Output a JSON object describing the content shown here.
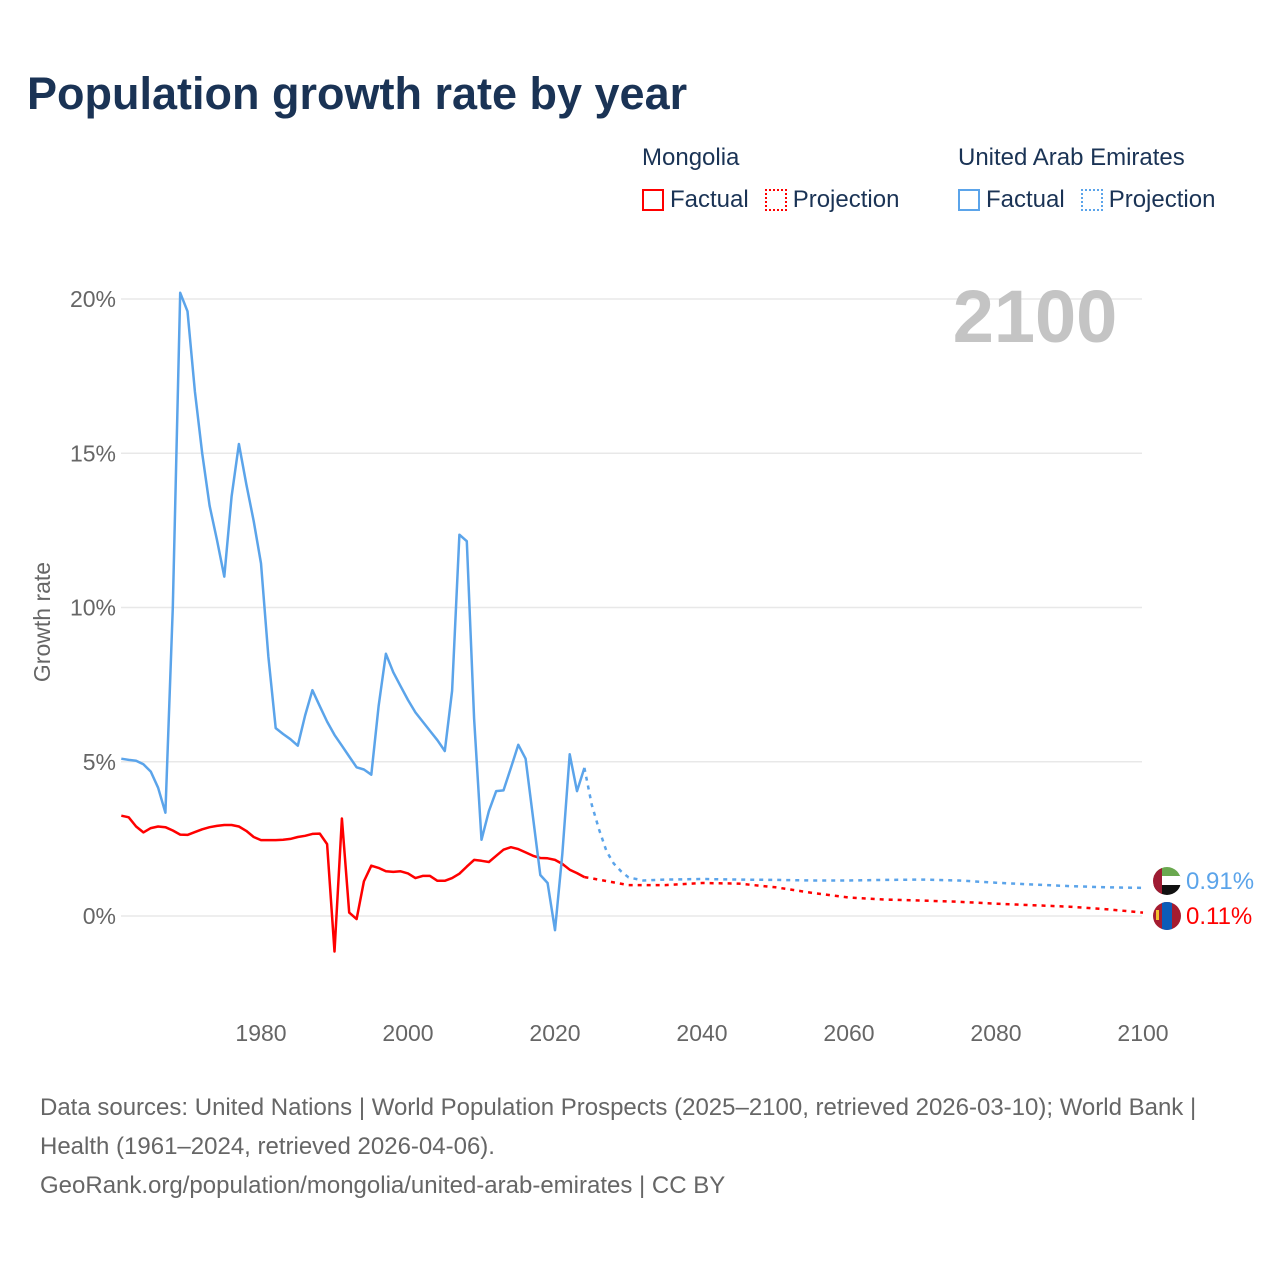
{
  "title": "Population growth rate by year",
  "legend": {
    "groups": [
      {
        "name": "Mongolia",
        "factual": "Factual",
        "projection": "Projection",
        "color": "#ff0000"
      },
      {
        "name": "United Arab Emirates",
        "factual": "Factual",
        "projection": "Projection",
        "color": "#5ba4ea"
      }
    ]
  },
  "year_display": "2100",
  "footer": {
    "sources": "Data sources: United Nations | World Population Prospects (2025–2100, retrieved 2026-03-10); World Bank | Health (1961–2024, retrieved 2026-04-06).",
    "credit": "GeoRank.org/population/mongolia/united-arab-emirates | CC BY"
  },
  "chart_data": {
    "type": "line",
    "title": "Population growth rate by year",
    "xlabel": "",
    "ylabel": "Growth rate",
    "xlim": [
      1961,
      2100
    ],
    "ylim": [
      -1.5,
      20.5
    ],
    "x_ticks": [
      "1980",
      "2000",
      "2020",
      "2040",
      "2060",
      "2080",
      "2100"
    ],
    "x_tick_values": [
      1980,
      2000,
      2020,
      2040,
      2060,
      2080,
      2100
    ],
    "y_ticks": [
      "0%",
      "5%",
      "10%",
      "15%",
      "20%"
    ],
    "y_tick_values": [
      0,
      5,
      10,
      15,
      20
    ],
    "grid": true,
    "legend_position": "top-right",
    "series": [
      {
        "name": "Mongolia",
        "color": "#ff0000",
        "end_label": "0.11%",
        "factual": {
          "x": [
            1961,
            1962,
            1963,
            1964,
            1965,
            1966,
            1967,
            1968,
            1969,
            1970,
            1971,
            1972,
            1973,
            1974,
            1975,
            1976,
            1977,
            1978,
            1979,
            1980,
            1981,
            1982,
            1983,
            1984,
            1985,
            1986,
            1987,
            1988,
            1989,
            1990,
            1991,
            1992,
            1993,
            1994,
            1995,
            1996,
            1997,
            1998,
            1999,
            2000,
            2001,
            2002,
            2003,
            2004,
            2005,
            2006,
            2007,
            2008,
            2009,
            2010,
            2011,
            2012,
            2013,
            2014,
            2015,
            2016,
            2017,
            2018,
            2019,
            2020,
            2021,
            2022,
            2023,
            2024
          ],
          "y": [
            3.25,
            3.2,
            2.9,
            2.71,
            2.85,
            2.9,
            2.88,
            2.77,
            2.64,
            2.63,
            2.72,
            2.81,
            2.88,
            2.92,
            2.95,
            2.95,
            2.9,
            2.76,
            2.56,
            2.46,
            2.46,
            2.46,
            2.47,
            2.5,
            2.56,
            2.6,
            2.66,
            2.67,
            2.33,
            -1.15,
            3.16,
            0.11,
            -0.1,
            1.12,
            1.63,
            1.56,
            1.45,
            1.43,
            1.45,
            1.38,
            1.23,
            1.3,
            1.3,
            1.14,
            1.14,
            1.23,
            1.37,
            1.6,
            1.82,
            1.79,
            1.75,
            1.95,
            2.15,
            2.23,
            2.17,
            2.06,
            1.95,
            1.88,
            1.87,
            1.82,
            1.69,
            1.5,
            1.39,
            1.26
          ]
        },
        "projection": {
          "x": [
            2024,
            2025,
            2030,
            2035,
            2040,
            2045,
            2050,
            2055,
            2060,
            2065,
            2070,
            2075,
            2080,
            2085,
            2090,
            2095,
            2100
          ],
          "y": [
            1.26,
            1.22,
            1.0,
            1.0,
            1.07,
            1.05,
            0.93,
            0.75,
            0.6,
            0.53,
            0.5,
            0.46,
            0.4,
            0.35,
            0.3,
            0.22,
            0.11
          ]
        }
      },
      {
        "name": "United Arab Emirates",
        "color": "#5ba4ea",
        "end_label": "0.91%",
        "factual": {
          "x": [
            1961,
            1962,
            1963,
            1964,
            1965,
            1966,
            1967,
            1968,
            1969,
            1970,
            1971,
            1972,
            1973,
            1974,
            1975,
            1976,
            1977,
            1978,
            1979,
            1980,
            1981,
            1982,
            1983,
            1984,
            1985,
            1986,
            1987,
            1988,
            1989,
            1990,
            1991,
            1992,
            1993,
            1994,
            1995,
            1996,
            1997,
            1998,
            1999,
            2000,
            2001,
            2002,
            2003,
            2004,
            2005,
            2006,
            2007,
            2008,
            2009,
            2010,
            2011,
            2012,
            2013,
            2014,
            2015,
            2016,
            2017,
            2018,
            2019,
            2020,
            2021,
            2022,
            2023,
            2024
          ],
          "y": [
            5.1,
            5.06,
            5.03,
            4.92,
            4.68,
            4.16,
            3.35,
            10.0,
            20.2,
            19.6,
            17.0,
            15.0,
            13.3,
            12.2,
            11.0,
            13.6,
            15.3,
            14.0,
            12.8,
            11.43,
            8.4,
            6.09,
            5.9,
            5.73,
            5.52,
            6.5,
            7.32,
            6.8,
            6.3,
            5.87,
            5.52,
            5.17,
            4.82,
            4.75,
            4.58,
            6.8,
            8.5,
            7.9,
            7.45,
            7.0,
            6.6,
            6.3,
            6.0,
            5.7,
            5.35,
            7.3,
            12.36,
            12.15,
            6.4,
            2.47,
            3.4,
            4.05,
            4.07,
            4.8,
            5.55,
            5.1,
            3.2,
            1.33,
            1.07,
            -0.46,
            2.0,
            5.24,
            4.05,
            4.8
          ]
        },
        "projection": {
          "x": [
            2024,
            2025,
            2026,
            2027,
            2028,
            2029,
            2030,
            2032,
            2035,
            2040,
            2045,
            2050,
            2055,
            2060,
            2065,
            2070,
            2075,
            2080,
            2085,
            2090,
            2095,
            2100
          ],
          "y": [
            4.8,
            3.6,
            2.8,
            2.1,
            1.7,
            1.45,
            1.25,
            1.15,
            1.18,
            1.2,
            1.18,
            1.17,
            1.15,
            1.15,
            1.17,
            1.18,
            1.15,
            1.08,
            1.02,
            0.97,
            0.93,
            0.91
          ]
        }
      }
    ]
  }
}
